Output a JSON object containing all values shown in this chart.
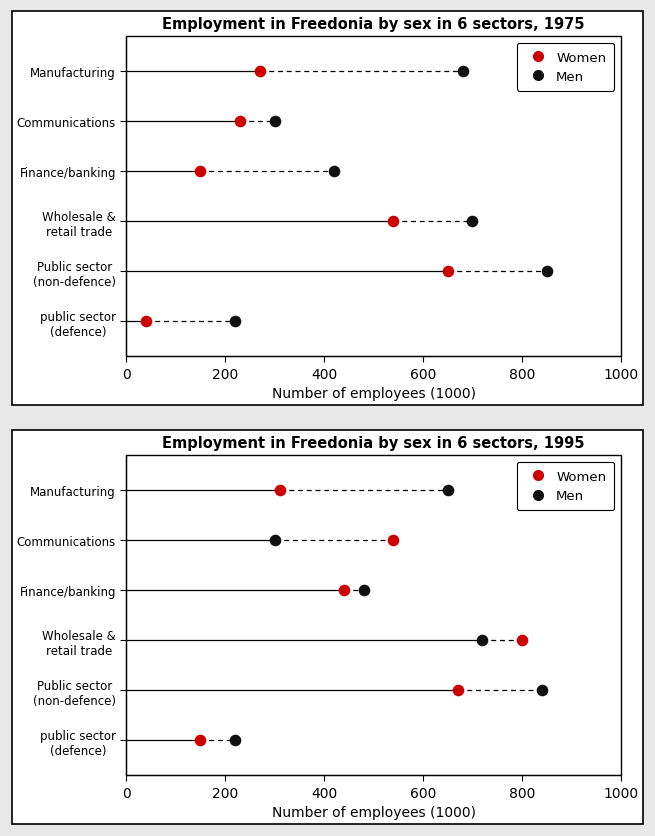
{
  "chart1": {
    "title": "Employment in Freedonia by sex in 6 sectors, 1975",
    "categories": [
      "Manufacturing",
      "Communications",
      "Finance/banking",
      "Wholesale &\nretail trade",
      "Public sector\n(non-defence)",
      "public sector\n(defence)"
    ],
    "women": [
      270,
      230,
      150,
      540,
      650,
      40
    ],
    "men": [
      680,
      300,
      420,
      700,
      850,
      220
    ]
  },
  "chart2": {
    "title": "Employment in Freedonia by sex in 6 sectors, 1995",
    "categories": [
      "Manufacturing",
      "Communications",
      "Finance/banking",
      "Wholesale &\nretail trade",
      "Public sector\n(non-defence)",
      "public sector\n(defence)"
    ],
    "women": [
      310,
      540,
      440,
      800,
      670,
      150
    ],
    "men": [
      650,
      300,
      480,
      720,
      840,
      220
    ]
  },
  "women_color": "#cc0000",
  "men_color": "#111111",
  "xlabel": "Number of employees (1000)",
  "xlim": [
    0,
    1000
  ],
  "xticks": [
    0,
    200,
    400,
    600,
    800,
    1000
  ],
  "figsize": [
    6.55,
    8.37
  ],
  "dpi": 100,
  "bg_color": "#e8e8e8",
  "plot_bg_color": "#ffffff"
}
